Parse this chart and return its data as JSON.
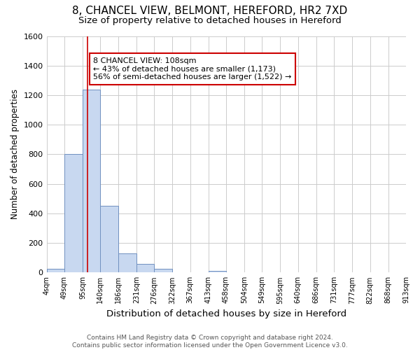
{
  "title": "8, CHANCEL VIEW, BELMONT, HEREFORD, HR2 7XD",
  "subtitle": "Size of property relative to detached houses in Hereford",
  "xlabel": "Distribution of detached houses by size in Hereford",
  "ylabel": "Number of detached properties",
  "bar_values": [
    25,
    800,
    1240,
    450,
    130,
    60,
    25,
    0,
    0,
    10,
    0,
    0,
    0,
    0,
    0,
    0,
    0,
    0,
    0,
    0
  ],
  "bar_edges": [
    4,
    49,
    95,
    140,
    186,
    231,
    276,
    322,
    367,
    413,
    458,
    504,
    549,
    595,
    640,
    686,
    731,
    777,
    822,
    868,
    913
  ],
  "bar_color": "#c8d8f0",
  "bar_edgecolor": "#7090c0",
  "bar_alpha": 1.0,
  "red_line_x": 108,
  "red_line_color": "#cc0000",
  "annotation_text": "8 CHANCEL VIEW: 108sqm\n← 43% of detached houses are smaller (1,173)\n56% of semi-detached houses are larger (1,522) →",
  "annotation_box_color": "white",
  "annotation_box_edgecolor": "#cc0000",
  "ylim": [
    0,
    1600
  ],
  "yticks": [
    0,
    200,
    400,
    600,
    800,
    1000,
    1200,
    1400,
    1600
  ],
  "tick_labels": [
    "4sqm",
    "49sqm",
    "95sqm",
    "140sqm",
    "186sqm",
    "231sqm",
    "276sqm",
    "322sqm",
    "367sqm",
    "413sqm",
    "458sqm",
    "504sqm",
    "549sqm",
    "595sqm",
    "640sqm",
    "686sqm",
    "731sqm",
    "777sqm",
    "822sqm",
    "868sqm",
    "913sqm"
  ],
  "grid_color": "#cccccc",
  "bg_color": "#ffffff",
  "footnote": "Contains HM Land Registry data © Crown copyright and database right 2024.\nContains public sector information licensed under the Open Government Licence v3.0.",
  "title_fontsize": 11,
  "subtitle_fontsize": 9.5,
  "xlabel_fontsize": 9.5,
  "ylabel_fontsize": 8.5,
  "tick_fontsize": 7,
  "annot_fontsize": 8,
  "footnote_fontsize": 6.5
}
